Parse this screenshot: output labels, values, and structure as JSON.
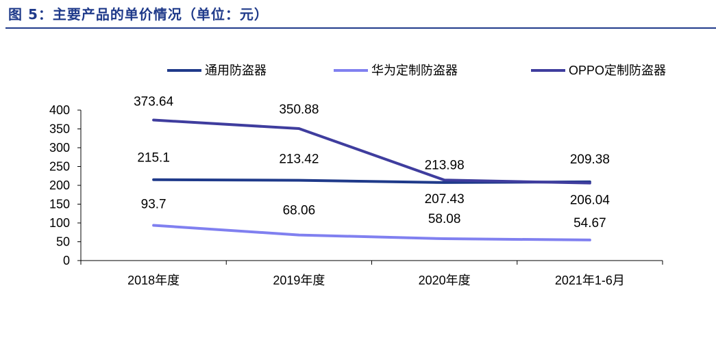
{
  "figure": {
    "title": "图 5：主要产品的单价情况（单位：元）"
  },
  "chart_data": {
    "type": "line",
    "title": "图 5：主要产品的单价情况（单位：元）",
    "xlabel": "",
    "ylabel": "",
    "categories": [
      "2018年度",
      "2019年度",
      "2020年度",
      "2021年1-6月"
    ],
    "ylim": [
      0,
      400
    ],
    "yticks": [
      0,
      50,
      100,
      150,
      200,
      250,
      300,
      350,
      400
    ],
    "grid": false,
    "legend_position": "top",
    "series": [
      {
        "name": "通用防盗器",
        "color": "#1f3a8a",
        "values": [
          215.1,
          213.42,
          207.43,
          209.38
        ],
        "labels": [
          "215.1",
          "213.42",
          "207.43",
          "209.38"
        ]
      },
      {
        "name": "华为定制防盗器",
        "color": "#8080f0",
        "values": [
          93.7,
          68.06,
          58.08,
          54.67
        ],
        "labels": [
          "93.7",
          "68.06",
          "58.08",
          "54.67"
        ]
      },
      {
        "name": "OPPO定制防盗器",
        "color": "#3f3d9e",
        "values": [
          373.64,
          350.88,
          213.98,
          206.04
        ],
        "labels": [
          "373.64",
          "350.88",
          "213.98",
          "206.04"
        ]
      }
    ]
  }
}
